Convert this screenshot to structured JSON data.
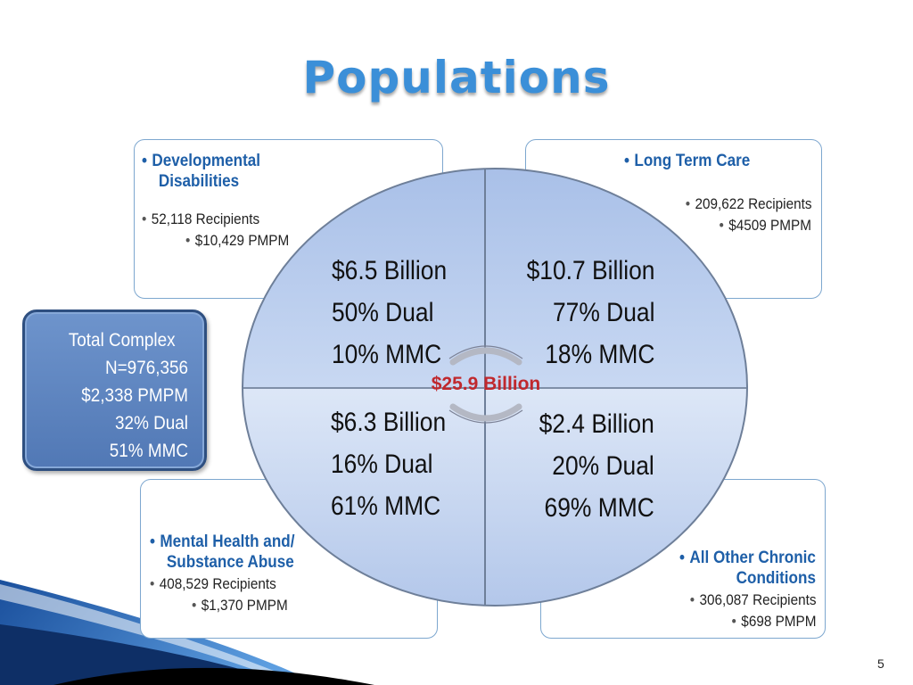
{
  "title": "Populations",
  "quadrants": {
    "developmental_disabilities": {
      "header": "Developmental Disabilities",
      "header_line1": "Developmental",
      "header_line2": "Disabilities",
      "recipients": "52,118 Recipients",
      "pmpm": "$10,429 PMPM",
      "cost": "$6.5 Billion",
      "dual": "50% Dual",
      "mmc": "10% MMC"
    },
    "long_term_care": {
      "header": "Long Term Care",
      "recipients": "209,622 Recipients",
      "pmpm": "$4509 PMPM",
      "cost": "$10.7 Billion",
      "dual": "77% Dual",
      "mmc": "18% MMC"
    },
    "mental_health": {
      "header": "Mental Health and/ Substance Abuse",
      "header_line1": "Mental Health and/",
      "header_line2": "Substance Abuse",
      "recipients": "408,529 Recipients",
      "pmpm": "$1,370 PMPM",
      "cost": "$6.3 Billion",
      "dual": "16% Dual",
      "mmc": "61% MMC"
    },
    "other_chronic": {
      "header": "All Other Chronic Conditions",
      "header_line1": "All Other Chronic",
      "header_line2": "Conditions",
      "recipients": "306,087 Recipients",
      "pmpm": "$698 PMPM",
      "cost": "$2.4 Billion",
      "dual": "20% Dual",
      "mmc": "69% MMC"
    }
  },
  "total": {
    "label": "Total Complex",
    "n": "N=976,356",
    "pmpm": "$2,338 PMPM",
    "dual": "32% Dual",
    "mmc": "51% MMC"
  },
  "center_label": "$25.9 Billion",
  "page_number": "5",
  "colors": {
    "title": "#3b8fd8",
    "header": "#1e5fa8",
    "center_label": "#c0282d",
    "pie_light": "#dde7f7",
    "pie_dark": "#9fb8e4",
    "side_box": "#5f86c1"
  }
}
